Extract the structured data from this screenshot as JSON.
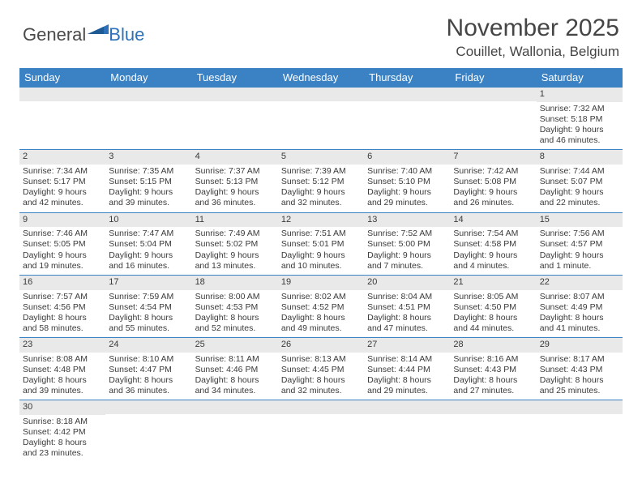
{
  "logo": {
    "main": "General",
    "accent": "Blue"
  },
  "title": "November 2025",
  "location": "Couillet, Wallonia, Belgium",
  "colors": {
    "header_bar": "#3b82c4",
    "daynum_bg": "#e9e9e9",
    "row_border": "#3b82c4",
    "text": "#3a3a3a",
    "title_text": "#454545",
    "logo_accent": "#2d72b8"
  },
  "day_names": [
    "Sunday",
    "Monday",
    "Tuesday",
    "Wednesday",
    "Thursday",
    "Friday",
    "Saturday"
  ],
  "weeks": [
    [
      {
        "n": null
      },
      {
        "n": null
      },
      {
        "n": null
      },
      {
        "n": null
      },
      {
        "n": null
      },
      {
        "n": null
      },
      {
        "n": "1",
        "sr": "Sunrise: 7:32 AM",
        "ss": "Sunset: 5:18 PM",
        "dl1": "Daylight: 9 hours",
        "dl2": "and 46 minutes."
      }
    ],
    [
      {
        "n": "2",
        "sr": "Sunrise: 7:34 AM",
        "ss": "Sunset: 5:17 PM",
        "dl1": "Daylight: 9 hours",
        "dl2": "and 42 minutes."
      },
      {
        "n": "3",
        "sr": "Sunrise: 7:35 AM",
        "ss": "Sunset: 5:15 PM",
        "dl1": "Daylight: 9 hours",
        "dl2": "and 39 minutes."
      },
      {
        "n": "4",
        "sr": "Sunrise: 7:37 AM",
        "ss": "Sunset: 5:13 PM",
        "dl1": "Daylight: 9 hours",
        "dl2": "and 36 minutes."
      },
      {
        "n": "5",
        "sr": "Sunrise: 7:39 AM",
        "ss": "Sunset: 5:12 PM",
        "dl1": "Daylight: 9 hours",
        "dl2": "and 32 minutes."
      },
      {
        "n": "6",
        "sr": "Sunrise: 7:40 AM",
        "ss": "Sunset: 5:10 PM",
        "dl1": "Daylight: 9 hours",
        "dl2": "and 29 minutes."
      },
      {
        "n": "7",
        "sr": "Sunrise: 7:42 AM",
        "ss": "Sunset: 5:08 PM",
        "dl1": "Daylight: 9 hours",
        "dl2": "and 26 minutes."
      },
      {
        "n": "8",
        "sr": "Sunrise: 7:44 AM",
        "ss": "Sunset: 5:07 PM",
        "dl1": "Daylight: 9 hours",
        "dl2": "and 22 minutes."
      }
    ],
    [
      {
        "n": "9",
        "sr": "Sunrise: 7:46 AM",
        "ss": "Sunset: 5:05 PM",
        "dl1": "Daylight: 9 hours",
        "dl2": "and 19 minutes."
      },
      {
        "n": "10",
        "sr": "Sunrise: 7:47 AM",
        "ss": "Sunset: 5:04 PM",
        "dl1": "Daylight: 9 hours",
        "dl2": "and 16 minutes."
      },
      {
        "n": "11",
        "sr": "Sunrise: 7:49 AM",
        "ss": "Sunset: 5:02 PM",
        "dl1": "Daylight: 9 hours",
        "dl2": "and 13 minutes."
      },
      {
        "n": "12",
        "sr": "Sunrise: 7:51 AM",
        "ss": "Sunset: 5:01 PM",
        "dl1": "Daylight: 9 hours",
        "dl2": "and 10 minutes."
      },
      {
        "n": "13",
        "sr": "Sunrise: 7:52 AM",
        "ss": "Sunset: 5:00 PM",
        "dl1": "Daylight: 9 hours",
        "dl2": "and 7 minutes."
      },
      {
        "n": "14",
        "sr": "Sunrise: 7:54 AM",
        "ss": "Sunset: 4:58 PM",
        "dl1": "Daylight: 9 hours",
        "dl2": "and 4 minutes."
      },
      {
        "n": "15",
        "sr": "Sunrise: 7:56 AM",
        "ss": "Sunset: 4:57 PM",
        "dl1": "Daylight: 9 hours",
        "dl2": "and 1 minute."
      }
    ],
    [
      {
        "n": "16",
        "sr": "Sunrise: 7:57 AM",
        "ss": "Sunset: 4:56 PM",
        "dl1": "Daylight: 8 hours",
        "dl2": "and 58 minutes."
      },
      {
        "n": "17",
        "sr": "Sunrise: 7:59 AM",
        "ss": "Sunset: 4:54 PM",
        "dl1": "Daylight: 8 hours",
        "dl2": "and 55 minutes."
      },
      {
        "n": "18",
        "sr": "Sunrise: 8:00 AM",
        "ss": "Sunset: 4:53 PM",
        "dl1": "Daylight: 8 hours",
        "dl2": "and 52 minutes."
      },
      {
        "n": "19",
        "sr": "Sunrise: 8:02 AM",
        "ss": "Sunset: 4:52 PM",
        "dl1": "Daylight: 8 hours",
        "dl2": "and 49 minutes."
      },
      {
        "n": "20",
        "sr": "Sunrise: 8:04 AM",
        "ss": "Sunset: 4:51 PM",
        "dl1": "Daylight: 8 hours",
        "dl2": "and 47 minutes."
      },
      {
        "n": "21",
        "sr": "Sunrise: 8:05 AM",
        "ss": "Sunset: 4:50 PM",
        "dl1": "Daylight: 8 hours",
        "dl2": "and 44 minutes."
      },
      {
        "n": "22",
        "sr": "Sunrise: 8:07 AM",
        "ss": "Sunset: 4:49 PM",
        "dl1": "Daylight: 8 hours",
        "dl2": "and 41 minutes."
      }
    ],
    [
      {
        "n": "23",
        "sr": "Sunrise: 8:08 AM",
        "ss": "Sunset: 4:48 PM",
        "dl1": "Daylight: 8 hours",
        "dl2": "and 39 minutes."
      },
      {
        "n": "24",
        "sr": "Sunrise: 8:10 AM",
        "ss": "Sunset: 4:47 PM",
        "dl1": "Daylight: 8 hours",
        "dl2": "and 36 minutes."
      },
      {
        "n": "25",
        "sr": "Sunrise: 8:11 AM",
        "ss": "Sunset: 4:46 PM",
        "dl1": "Daylight: 8 hours",
        "dl2": "and 34 minutes."
      },
      {
        "n": "26",
        "sr": "Sunrise: 8:13 AM",
        "ss": "Sunset: 4:45 PM",
        "dl1": "Daylight: 8 hours",
        "dl2": "and 32 minutes."
      },
      {
        "n": "27",
        "sr": "Sunrise: 8:14 AM",
        "ss": "Sunset: 4:44 PM",
        "dl1": "Daylight: 8 hours",
        "dl2": "and 29 minutes."
      },
      {
        "n": "28",
        "sr": "Sunrise: 8:16 AM",
        "ss": "Sunset: 4:43 PM",
        "dl1": "Daylight: 8 hours",
        "dl2": "and 27 minutes."
      },
      {
        "n": "29",
        "sr": "Sunrise: 8:17 AM",
        "ss": "Sunset: 4:43 PM",
        "dl1": "Daylight: 8 hours",
        "dl2": "and 25 minutes."
      }
    ],
    [
      {
        "n": "30",
        "sr": "Sunrise: 8:18 AM",
        "ss": "Sunset: 4:42 PM",
        "dl1": "Daylight: 8 hours",
        "dl2": "and 23 minutes."
      },
      {
        "n": null
      },
      {
        "n": null
      },
      {
        "n": null
      },
      {
        "n": null
      },
      {
        "n": null
      },
      {
        "n": null
      }
    ]
  ]
}
